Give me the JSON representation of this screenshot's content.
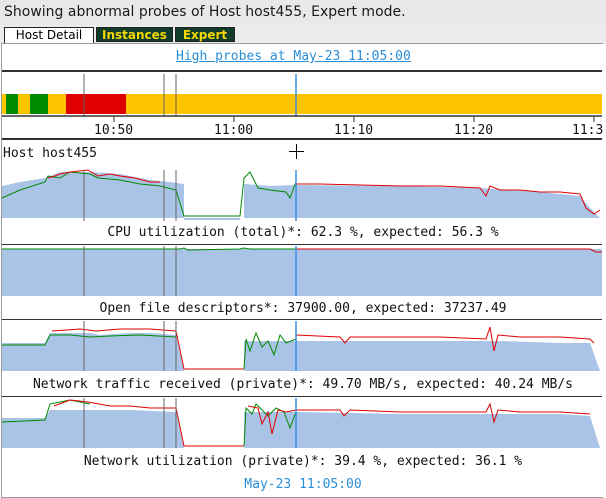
{
  "window": {
    "title": "Showing abnormal probes of Host host455, Expert mode."
  },
  "tabs": [
    {
      "label": "Host Detail",
      "active": true
    },
    {
      "label": "Instances",
      "active": false
    },
    {
      "label": "Expert",
      "active": false
    }
  ],
  "heading": "High probes at May-23 11:05:00",
  "timeline": {
    "tick_labels": [
      "10:50",
      "11:00",
      "11:10",
      "11:20",
      "11:3"
    ],
    "status_segments": [
      {
        "from": "10:40",
        "to": "10:41",
        "status": "normal"
      },
      {
        "from": "10:41",
        "to": "10:42",
        "status": "ok"
      },
      {
        "from": "10:42",
        "to": "10:43",
        "status": "normal"
      },
      {
        "from": "10:43",
        "to": "10:44.5",
        "status": "ok"
      },
      {
        "from": "10:44.5",
        "to": "10:46",
        "status": "normal"
      },
      {
        "from": "10:46",
        "to": "10:51",
        "status": "high"
      },
      {
        "from": "10:51",
        "to": "11:32",
        "status": "normal"
      }
    ],
    "colors": {
      "high": "#e00000",
      "normal": "#ffc400",
      "ok": "#008a00"
    }
  },
  "host_label": "Host host455",
  "metrics": [
    {
      "label": "CPU utilization (total)*: 62.3 %, expected: 56.3 %"
    },
    {
      "label": "Open file descriptors*: 37900.00, expected: 37237.49"
    },
    {
      "label": "Network traffic received (private)*: 49.70 MB/s, expected: 40.24 MB/s"
    },
    {
      "label": "Network utilization (private)*: 39.4 %, expected: 36.1 %"
    }
  ],
  "footer_time": "May-23 11:05:00",
  "colors": {
    "link": "#2a8fd8",
    "expected_fill": "#a9c4e6",
    "actual_above": "#e00000",
    "actual_below": "#008a00",
    "tab_bg": "#0f3d2a",
    "tab_text": "#f5d800"
  }
}
